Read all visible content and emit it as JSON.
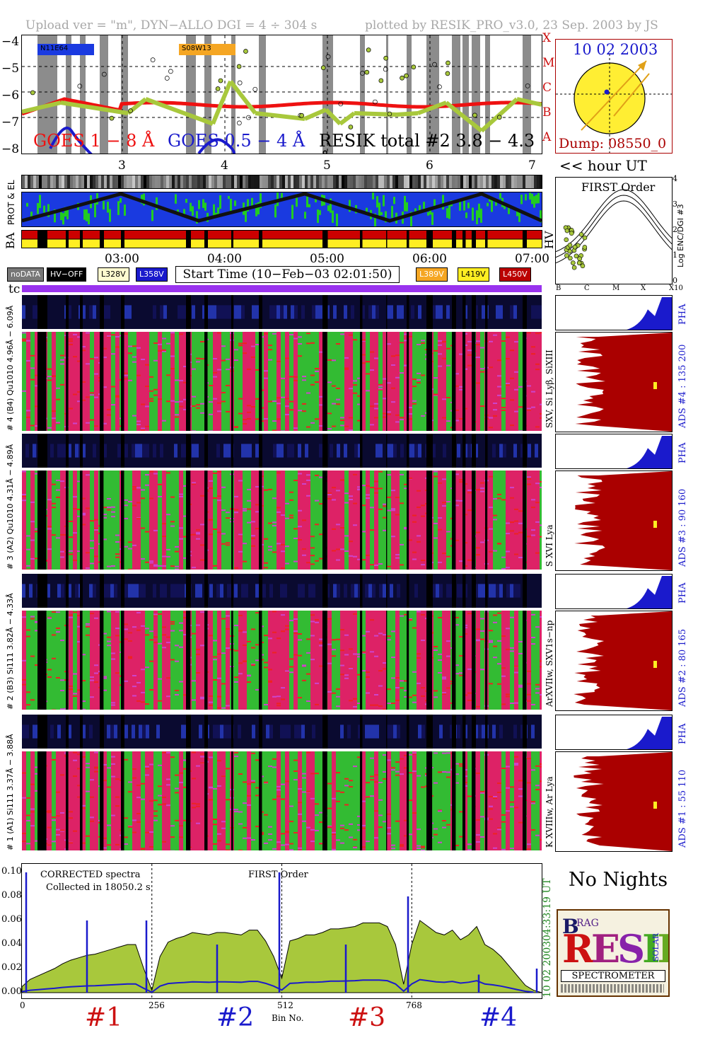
{
  "header": {
    "left": "Upload ver = \"m\", DYN−ALLO DGI =   4 ÷ 304 s",
    "right": "plotted by RESIK_PRO_v3.0, 23 Sep. 2003 by JS"
  },
  "goes_panel": {
    "y_ticks": [
      "−4",
      "−5",
      "−6",
      "−7",
      "−8"
    ],
    "class_letters": [
      "X",
      "M",
      "C",
      "B",
      "A"
    ],
    "goes_long": "GOES 1 − 8 Å",
    "goes_short": "GOES 0.5 − 4 Å",
    "resik_total": "RESIK total #2  3.8 − 4.3 Å",
    "region_a": "N11E64",
    "region_b": "S08W13",
    "hour_ticks": [
      "3",
      "4",
      "5",
      "6",
      "7"
    ],
    "hour_label": "<< hour UT",
    "colors": {
      "goes_long": "#ee1111",
      "goes_short": "#1a1acc",
      "resik": "#a8c83c",
      "night": "#8c8c8c"
    }
  },
  "sun_panel": {
    "date": "10 02 2003",
    "dump": "Dump: 08550_0"
  },
  "status_panel": {
    "prot_el": "PROT & EL",
    "ba": "BA",
    "hv": "HV",
    "time_ticks": [
      "03:00",
      "04:00",
      "05:00",
      "06:00",
      "07:00"
    ]
  },
  "first_order": {
    "title": "FIRST Order",
    "ylabel": "Log ENC/DGI #3",
    "y_ticks": [
      "4",
      "3",
      "2",
      "1",
      "0"
    ],
    "x_ticks": [
      "B",
      "C",
      "M",
      "X",
      "X10"
    ]
  },
  "legend": {
    "nodata": "noDATA",
    "hvoff": "HV−OFF",
    "l328": "L328V",
    "l358": "L358V",
    "start_time": "Start Time (10−Feb−03 02:01:50)",
    "l389": "L389V",
    "l419": "L419V",
    "l450": "L450V",
    "tc": "tc"
  },
  "channels": [
    {
      "left": "# 4 (B4) Qu1010 4.96Å − 6.09Å",
      "right_line": "SXV, Si Lyβ, SiXIII",
      "ads": "ADS #4 :   135 200",
      "pha": "PHA"
    },
    {
      "left": "# 3 (A2) Qu1010 4.31Å − 4.89Å",
      "right_line": "S XVI Lya",
      "ads": "ADS #3 :   90 160",
      "pha": "PHA"
    },
    {
      "left": "# 2 (B3) Si111  3.82Å − 4.33Å",
      "right_line": "ArXVIIw, SXV1s−np",
      "ads": "ADS #2 :   80 165",
      "pha": "PHA"
    },
    {
      "left": "# 1 (A1) Si111  3.37Å − 3.88Å",
      "right_line": "K XVIIIw, Ar Lya",
      "ads": "ADS #1 :   55 110",
      "pha": "PHA"
    }
  ],
  "spectrum": {
    "note1": "CORRECTED spectra",
    "note2": "Collected in 18050.2 s",
    "note3": "FIRST Order",
    "y_ticks": [
      "0.10",
      "0.08",
      "0.06",
      "0.04",
      "0.02",
      "0.00"
    ],
    "x_ticks": [
      "0",
      "256",
      "512",
      "768"
    ],
    "xlabel": "Bin No.",
    "right_time": "04:33:19 UT",
    "right_date": "10 02 2003",
    "groups": [
      "#1",
      "#2",
      "#3",
      "#4"
    ],
    "group_colors": [
      "#cc1111",
      "#1a1acc",
      "#cc1111",
      "#1a1acc"
    ]
  },
  "no_nights": "No Nights",
  "logo": {
    "big": "RESIK",
    "sub": "SPECTROMETER",
    "small_a": "B",
    "small_b": "RAG",
    "small_c": "SOLAR"
  },
  "chart_data": {
    "type": "line",
    "title": "",
    "xlabel": "Bin No.",
    "ylabel": "",
    "xlim": [
      0,
      1024
    ],
    "ylim": [
      0,
      0.1
    ],
    "series": [],
    "x": [
      0,
      16,
      32,
      48,
      64,
      80,
      96,
      112,
      128,
      144,
      160,
      176,
      192,
      208,
      224,
      240,
      256,
      272,
      288,
      304,
      320,
      336,
      352,
      368,
      384,
      400,
      416,
      432,
      448,
      464,
      480,
      496,
      512,
      528,
      544,
      560,
      576,
      592,
      608,
      624,
      640,
      656,
      672,
      688,
      704,
      720,
      736,
      752,
      768,
      784,
      800,
      816,
      832,
      848,
      864,
      880,
      896,
      912,
      928,
      944,
      960,
      976,
      992,
      1008
    ],
    "y": [
      0.005,
      0.011,
      0.014,
      0.017,
      0.02,
      0.024,
      0.027,
      0.029,
      0.031,
      0.032,
      0.034,
      0.036,
      0.038,
      0.04,
      0.04,
      0.02,
      0.002,
      0.03,
      0.042,
      0.045,
      0.047,
      0.05,
      0.049,
      0.048,
      0.05,
      0.05,
      0.049,
      0.048,
      0.052,
      0.052,
      0.043,
      0.03,
      0.012,
      0.043,
      0.045,
      0.048,
      0.048,
      0.05,
      0.053,
      0.053,
      0.054,
      0.055,
      0.058,
      0.058,
      0.058,
      0.055,
      0.04,
      0.007,
      0.04,
      0.06,
      0.055,
      0.05,
      0.048,
      0.052,
      0.044,
      0.048,
      0.055,
      0.04,
      0.036,
      0.03,
      0.022,
      0.014,
      0.006,
      0.002
    ]
  }
}
